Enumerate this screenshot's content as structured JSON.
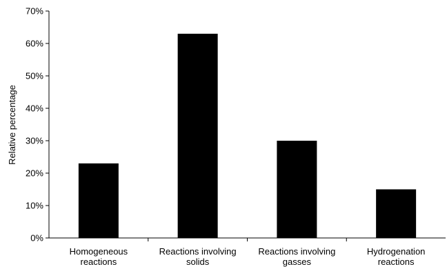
{
  "chart_data": {
    "type": "bar",
    "categories": [
      [
        "Homogeneous",
        "reactions"
      ],
      [
        "Reactions involving",
        "solids"
      ],
      [
        "Reactions involving",
        "gasses"
      ],
      [
        "Hydrogenation",
        "reactions"
      ]
    ],
    "values": [
      23,
      63,
      30,
      15
    ],
    "ylabel": "Relative percentage",
    "ylim": [
      0,
      70
    ],
    "yticks": [
      0,
      10,
      20,
      30,
      40,
      50,
      60,
      70
    ],
    "ytick_labels": [
      "0%",
      "10%",
      "20%",
      "30%",
      "40%",
      "50%",
      "60%",
      "70%"
    ],
    "grid": false,
    "bar_color": "#000000"
  }
}
